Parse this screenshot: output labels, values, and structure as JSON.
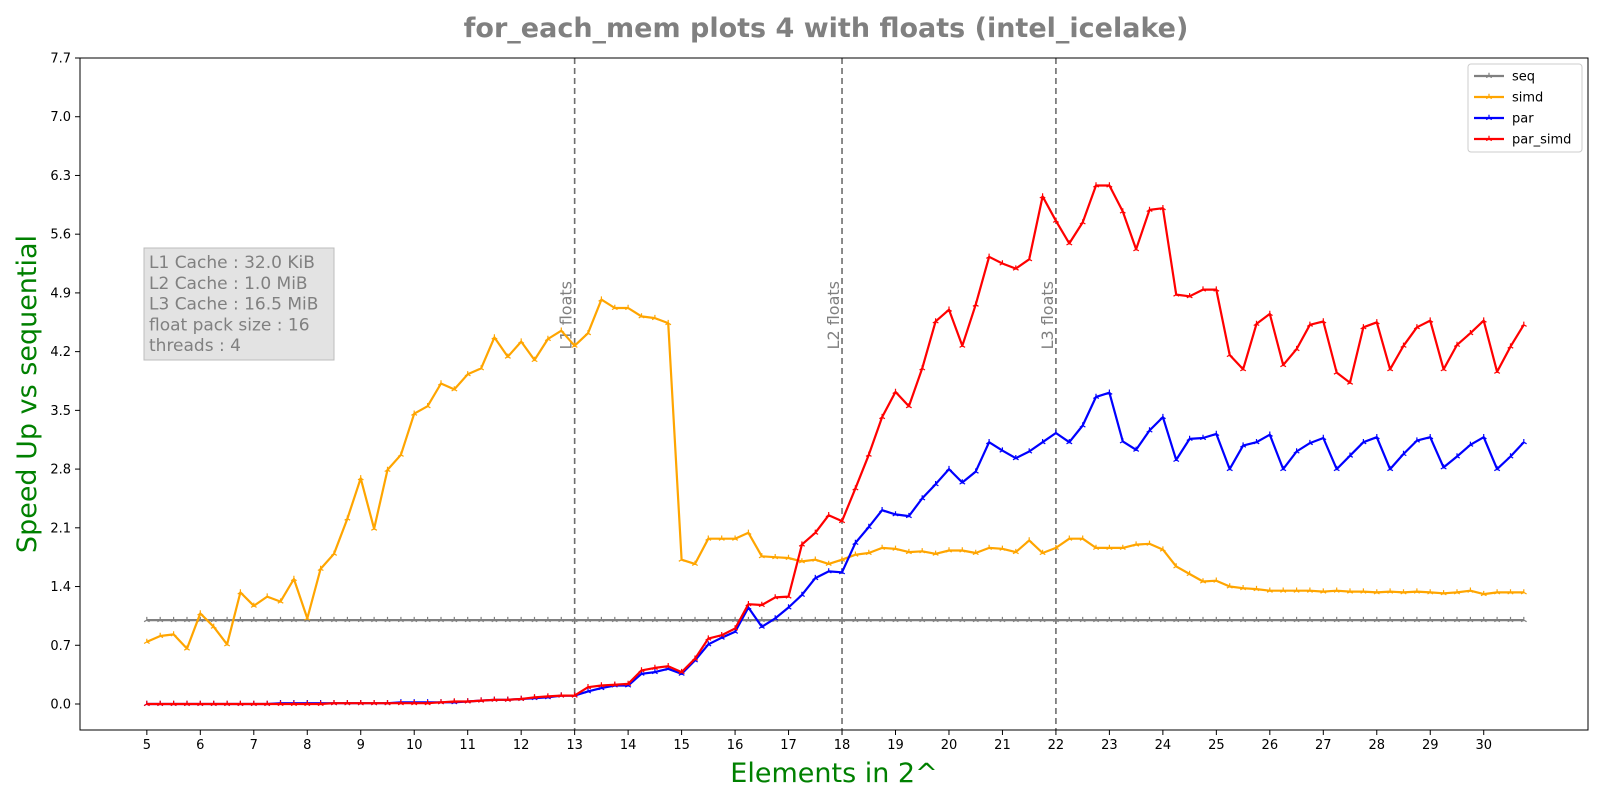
{
  "chart_data": {
    "type": "line",
    "title": "for_each_mem plots 4 with floats  (intel_icelake)",
    "xlabel": "Elements in 2^",
    "ylabel": "Speed Up vs sequential",
    "xlim": [
      3.75,
      31.95
    ],
    "ylim": [
      -0.31,
      7.7
    ],
    "xticks": [
      5,
      6,
      7,
      8,
      9,
      10,
      11,
      12,
      13,
      14,
      15,
      16,
      17,
      18,
      19,
      20,
      21,
      22,
      23,
      24,
      25,
      26,
      27,
      28,
      29,
      30
    ],
    "yticks": [
      0.0,
      0.7,
      1.4,
      2.1,
      2.8,
      3.5,
      4.2,
      4.9,
      5.6,
      6.3,
      7.0,
      7.7
    ],
    "legend_position": "top-right",
    "grid": false,
    "x_start": 5,
    "x_step": 0.25,
    "vlines": [
      {
        "x": 13,
        "label": "L1 floats"
      },
      {
        "x": 18,
        "label": "L2 floats"
      },
      {
        "x": 22,
        "label": "L3 floats"
      }
    ],
    "info_box": [
      "L1 Cache : 32.0 KiB",
      "L2 Cache : 1.0 MiB",
      "L3 Cache : 16.5 MiB",
      "float pack size : 16",
      "threads : 4"
    ],
    "series": [
      {
        "name": "seq",
        "color": "#808080",
        "values": [
          1.0,
          1.0,
          1.0,
          1.0,
          1.0,
          1.0,
          1.0,
          1.0,
          1.0,
          1.0,
          1.0,
          1.0,
          1.0,
          1.0,
          1.0,
          1.0,
          1.0,
          1.0,
          1.0,
          1.0,
          1.0,
          1.0,
          1.0,
          1.0,
          1.0,
          1.0,
          1.0,
          1.0,
          1.0,
          1.0,
          1.0,
          1.0,
          1.0,
          1.0,
          1.0,
          1.0,
          1.0,
          1.0,
          1.0,
          1.0,
          1.0,
          1.0,
          1.0,
          1.0,
          1.0,
          1.0,
          1.0,
          1.0,
          1.0,
          1.0,
          1.0,
          1.0,
          1.0,
          1.0,
          1.0,
          1.0,
          1.0,
          1.0,
          1.0,
          1.0,
          1.0,
          1.0,
          1.0,
          1.0,
          1.0,
          1.0,
          1.0,
          1.0,
          1.0,
          1.0,
          1.0,
          1.0,
          1.0,
          1.0,
          1.0,
          1.0,
          1.0,
          1.0,
          1.0,
          1.0,
          1.0,
          1.0,
          1.0,
          1.0,
          1.0,
          1.0,
          1.0,
          1.0,
          1.0,
          1.0,
          1.0,
          1.0,
          1.0,
          1.0,
          1.0,
          1.0,
          1.0,
          1.0,
          1.0,
          1.0,
          1.0,
          1.0,
          1.0,
          1.0
        ]
      },
      {
        "name": "simd",
        "color": "#FFA500",
        "values": [
          0.74,
          0.81,
          0.83,
          0.66,
          1.08,
          0.92,
          0.71,
          1.33,
          1.17,
          1.28,
          1.22,
          1.49,
          1.02,
          1.61,
          1.79,
          2.21,
          2.69,
          2.09,
          2.79,
          2.97,
          3.46,
          3.55,
          3.82,
          3.75,
          3.93,
          4.0,
          4.37,
          4.14,
          4.32,
          4.1,
          4.35,
          4.45,
          4.27,
          4.42,
          4.82,
          4.72,
          4.72,
          4.62,
          4.6,
          4.54,
          1.72,
          1.67,
          1.97,
          1.97,
          1.97,
          2.04,
          1.76,
          1.75,
          1.74,
          1.7,
          1.72,
          1.67,
          1.72,
          1.78,
          1.8,
          1.86,
          1.85,
          1.81,
          1.82,
          1.79,
          1.83,
          1.83,
          1.8,
          1.86,
          1.85,
          1.81,
          1.95,
          1.8,
          1.86,
          1.97,
          1.97,
          1.86,
          1.86,
          1.86,
          1.9,
          1.91,
          1.84,
          1.64,
          1.55,
          1.46,
          1.47,
          1.4,
          1.38,
          1.37,
          1.35,
          1.35,
          1.35,
          1.35,
          1.34,
          1.35,
          1.34,
          1.34,
          1.33,
          1.34,
          1.33,
          1.34,
          1.33,
          1.32,
          1.33,
          1.35,
          1.31,
          1.33,
          1.33,
          1.33
        ]
      },
      {
        "name": "par",
        "color": "#0000FF",
        "values": [
          0.0,
          0.0,
          0.0,
          0.0,
          0.0,
          0.0,
          0.0,
          0.0,
          0.0,
          0.0,
          0.01,
          0.01,
          0.01,
          0.01,
          0.01,
          0.01,
          0.01,
          0.01,
          0.01,
          0.02,
          0.02,
          0.02,
          0.02,
          0.02,
          0.03,
          0.04,
          0.05,
          0.05,
          0.06,
          0.07,
          0.08,
          0.1,
          0.1,
          0.15,
          0.19,
          0.22,
          0.22,
          0.36,
          0.38,
          0.42,
          0.36,
          0.52,
          0.71,
          0.79,
          0.86,
          1.15,
          0.92,
          1.02,
          1.15,
          1.3,
          1.5,
          1.58,
          1.57,
          1.92,
          2.11,
          2.31,
          2.26,
          2.24,
          2.45,
          2.62,
          2.8,
          2.64,
          2.77,
          3.12,
          3.02,
          2.93,
          3.01,
          3.12,
          3.23,
          3.12,
          3.32,
          3.66,
          3.71,
          3.13,
          3.03,
          3.26,
          3.42,
          2.91,
          3.16,
          3.17,
          3.22,
          2.8,
          3.08,
          3.12,
          3.21,
          2.8,
          3.01,
          3.11,
          3.17,
          2.8,
          2.96,
          3.12,
          3.18,
          2.8,
          2.98,
          3.14,
          3.18,
          2.82,
          2.95,
          3.09,
          3.18,
          2.8,
          2.95,
          3.12
        ]
      },
      {
        "name": "par_simd",
        "color": "#FF0000",
        "values": [
          0.0,
          0.0,
          0.0,
          0.0,
          0.0,
          0.0,
          0.0,
          0.0,
          0.0,
          0.0,
          0.0,
          0.0,
          0.0,
          0.0,
          0.01,
          0.01,
          0.01,
          0.01,
          0.01,
          0.01,
          0.01,
          0.01,
          0.02,
          0.03,
          0.03,
          0.04,
          0.05,
          0.05,
          0.06,
          0.08,
          0.09,
          0.1,
          0.1,
          0.2,
          0.22,
          0.23,
          0.24,
          0.4,
          0.43,
          0.45,
          0.38,
          0.54,
          0.78,
          0.82,
          0.9,
          1.19,
          1.18,
          1.27,
          1.28,
          1.9,
          2.04,
          2.25,
          2.18,
          2.57,
          2.97,
          3.42,
          3.72,
          3.55,
          4.0,
          4.56,
          4.7,
          4.27,
          4.76,
          5.33,
          5.25,
          5.19,
          5.3,
          6.05,
          5.76,
          5.49,
          5.74,
          6.18,
          6.18,
          5.87,
          5.42,
          5.89,
          5.91,
          4.88,
          4.86,
          4.94,
          4.94,
          4.16,
          3.99,
          4.53,
          4.65,
          4.04,
          4.23,
          4.52,
          4.56,
          3.95,
          3.83,
          4.49,
          4.55,
          3.99,
          4.27,
          4.49,
          4.57,
          3.99,
          4.28,
          4.42,
          4.57,
          3.96,
          4.26,
          4.52
        ]
      }
    ]
  }
}
